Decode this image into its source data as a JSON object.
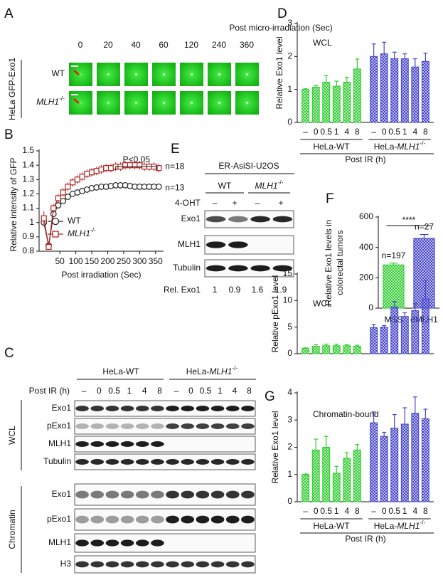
{
  "panel_labels": [
    "A",
    "B",
    "C",
    "D",
    "E",
    "F",
    "G"
  ],
  "panel_a": {
    "title": "Post micro-irradiation (Sec)",
    "times": [
      "0",
      "20",
      "40",
      "60",
      "120",
      "240",
      "360"
    ],
    "cell_line": "HeLa GFP-Exo1",
    "rows": [
      {
        "name": "WT"
      },
      {
        "gene": "MLH1",
        "sup": "-/-"
      }
    ]
  },
  "panel_c": {
    "groups": [
      {
        "name": "HeLa-WT"
      },
      {
        "name": "HeLa-",
        "gene": "MLH1",
        "sup": "-/-"
      }
    ],
    "xlabel": "Post IR (h)",
    "lanes": [
      "–",
      "0",
      "0.5",
      "1",
      "4",
      "8"
    ],
    "sections": [
      {
        "name": "WCL",
        "rows": [
          "Exo1",
          "pExo1",
          "MLH1",
          "Tubulin"
        ]
      },
      {
        "name": "Chromatin",
        "rows": [
          "Exo1",
          "pExo1",
          "MLH1",
          "H3"
        ]
      }
    ]
  },
  "panel_e": {
    "cell_line": "ER-AsiSI-U2OS",
    "groups": [
      {
        "name": "WT"
      },
      {
        "gene": "MLH1",
        "sup": "-/-"
      }
    ],
    "treatment": "4-OHT",
    "lanes": [
      "–",
      "+",
      "–",
      "+"
    ],
    "rows": [
      "Exo1",
      "MLH1",
      "Tubulin"
    ],
    "quant_label": "Rel. Exo1",
    "quant": [
      "1",
      "0.9",
      "1.6",
      "1.9"
    ]
  },
  "chart_data": [
    {
      "type": "bar",
      "annotation": "WCL",
      "ylabel": "Relative Exo1 level",
      "xlabel": "Post IR (h)",
      "categories": [
        "–",
        "0",
        "0.5",
        "1",
        "4",
        "8"
      ],
      "series": [
        {
          "name": "HeLa-WT",
          "color": "#2ecc2e",
          "values": [
            1.0,
            1.07,
            1.22,
            1.1,
            1.22,
            1.62
          ],
          "errors": [
            0.02,
            0.05,
            0.2,
            0.15,
            0.15,
            0.3
          ]
        },
        {
          "name": "HeLa-",
          "gene": "MLH1",
          "sup": "-/-",
          "color": "#4444cc",
          "values": [
            2.0,
            2.08,
            1.93,
            1.93,
            1.68,
            1.85
          ],
          "errors": [
            0.38,
            0.35,
            0.2,
            0.15,
            0.25,
            0.25
          ]
        }
      ],
      "ylim": [
        0,
        3
      ],
      "yticks": [
        0,
        1,
        2,
        3
      ]
    },
    {
      "type": "line",
      "ylabel": "Relative intensity of GFP",
      "xlabel": "Post irradiation (Sec)",
      "p_value": "P<0.05",
      "x": [
        0,
        15,
        30,
        45,
        60,
        75,
        90,
        105,
        120,
        135,
        150,
        165,
        180,
        195,
        210,
        225,
        240,
        255,
        270,
        285,
        300,
        315,
        330,
        345,
        360
      ],
      "series": [
        {
          "name": "WT",
          "marker": "circle",
          "color": "#222222",
          "n_label": "n=13",
          "values": [
            1.0,
            0.84,
            1.06,
            1.12,
            1.15,
            1.18,
            1.2,
            1.21,
            1.22,
            1.23,
            1.24,
            1.245,
            1.25,
            1.25,
            1.255,
            1.26,
            1.26,
            1.26,
            1.255,
            1.25,
            1.25,
            1.25,
            1.25,
            1.25,
            1.25
          ],
          "errors": [
            0.02,
            0.02,
            0.02,
            0.02,
            0.02,
            0.02,
            0.02,
            0.02,
            0.02,
            0.02,
            0.02,
            0.02,
            0.02,
            0.02,
            0.02,
            0.02,
            0.02,
            0.02,
            0.02,
            0.02,
            0.02,
            0.02,
            0.02,
            0.02,
            0.02
          ]
        },
        {
          "gene": "MLH1",
          "sup": "-/-",
          "marker": "square",
          "color": "#b22222",
          "n_label": "n=18",
          "values": [
            1.03,
            0.83,
            1.1,
            1.17,
            1.21,
            1.25,
            1.28,
            1.3,
            1.32,
            1.34,
            1.35,
            1.36,
            1.37,
            1.38,
            1.38,
            1.39,
            1.39,
            1.4,
            1.4,
            1.4,
            1.4,
            1.39,
            1.39,
            1.39,
            1.38
          ],
          "errors": [
            0.05,
            0.02,
            0.03,
            0.03,
            0.03,
            0.03,
            0.03,
            0.03,
            0.03,
            0.03,
            0.03,
            0.03,
            0.03,
            0.03,
            0.03,
            0.03,
            0.03,
            0.03,
            0.03,
            0.03,
            0.03,
            0.03,
            0.03,
            0.03,
            0.03
          ]
        }
      ],
      "xlim": [
        -15,
        375
      ],
      "xticks": [
        50,
        100,
        150,
        200,
        250,
        300,
        350
      ],
      "ylim": [
        0.8,
        1.5
      ],
      "yticks": [
        0.8,
        0.9,
        1,
        1.1,
        1.2,
        1.3,
        1.4,
        1.5
      ]
    },
    {
      "type": "bar",
      "ylabel": [
        "Relative Exo1 levels in",
        "colorectal tumors"
      ],
      "categories": [
        "MSS",
        "dMLH1"
      ],
      "values": [
        285,
        460
      ],
      "errors": [
        12,
        25
      ],
      "colors": [
        "#2ecc2e",
        "#4444cc"
      ],
      "n_labels": [
        "n=197",
        "n=27"
      ],
      "significance": "****",
      "ylim": [
        0,
        600
      ],
      "yticks": [
        0,
        200,
        400,
        600
      ]
    },
    {
      "type": "bar",
      "annotation": "WCL",
      "ylabel": "Relative pExo1 level",
      "series": [
        {
          "color": "#2ecc2e",
          "values": [
            1.0,
            1.4,
            1.5,
            1.5,
            1.5,
            1.4
          ],
          "errors": [
            0.1,
            0.3,
            0.3,
            0.3,
            0.2,
            0.2
          ]
        },
        {
          "color": "#4444cc",
          "values": [
            4.9,
            5.0,
            8.8,
            7.0,
            8.1,
            10.3
          ],
          "errors": [
            0.6,
            0.3,
            1.0,
            0.7,
            1.3,
            3.5
          ]
        }
      ],
      "ylim": [
        0,
        15
      ],
      "yticks": [
        0,
        5,
        10,
        15
      ]
    },
    {
      "type": "bar",
      "annotation": "Chromatin-bound",
      "ylabel": "Relative Exo1 level",
      "xlabel": "Post IR (h)",
      "categories": [
        "–",
        "0",
        "0.5",
        "1",
        "4",
        "8"
      ],
      "series": [
        {
          "name": "HeLa-WT",
          "color": "#2ecc2e",
          "values": [
            1.0,
            1.9,
            2.0,
            1.05,
            1.6,
            1.9
          ],
          "errors": [
            0.02,
            0.4,
            0.4,
            0.25,
            0.2,
            0.2
          ]
        },
        {
          "name": "HeLa-",
          "gene": "MLH1",
          "sup": "-/-",
          "color": "#4444cc",
          "values": [
            2.9,
            2.4,
            2.7,
            2.85,
            3.25,
            3.05
          ],
          "errors": [
            0.4,
            0.15,
            0.5,
            0.6,
            0.6,
            0.35
          ]
        }
      ],
      "ylim": [
        0,
        4
      ],
      "yticks": [
        0,
        1,
        2,
        3,
        4
      ]
    }
  ]
}
